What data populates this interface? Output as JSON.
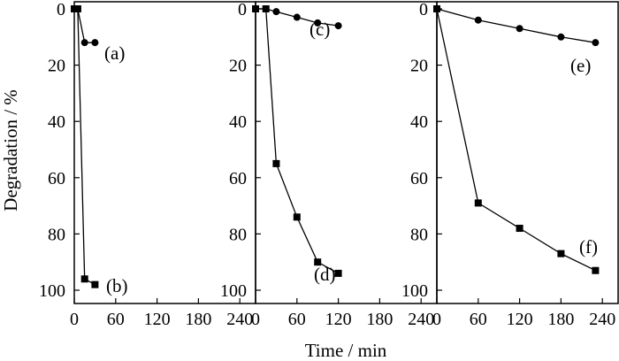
{
  "chart_data": [
    {
      "type": "line",
      "xlabel": "Time / min",
      "ylabel": "Degradation / %",
      "xlim": [
        0,
        240
      ],
      "ylim": [
        0,
        100
      ],
      "y_inverted": true,
      "x_ticks": [
        "0",
        "60",
        "120",
        "180",
        "240"
      ],
      "y_ticks": [
        "0",
        "20",
        "40",
        "60",
        "80",
        "100"
      ],
      "series": [
        {
          "name": "(a)",
          "marker": "circle",
          "x": [
            0,
            5,
            15,
            30
          ],
          "y": [
            0,
            0,
            12,
            12
          ]
        },
        {
          "name": "(b)",
          "marker": "square",
          "x": [
            0,
            5,
            15,
            30
          ],
          "y": [
            0,
            0,
            96,
            98
          ]
        }
      ]
    },
    {
      "type": "line",
      "xlabel": "Time / min",
      "ylabel": "Degradation / %",
      "xlim": [
        0,
        240
      ],
      "ylim": [
        0,
        100
      ],
      "y_inverted": true,
      "x_ticks": [
        "0",
        "60",
        "120",
        "180",
        "240"
      ],
      "y_ticks": [
        "0",
        "20",
        "40",
        "60",
        "80",
        "100"
      ],
      "series": [
        {
          "name": "(c)",
          "marker": "circle",
          "x": [
            0,
            15,
            30,
            60,
            90,
            120
          ],
          "y": [
            0,
            0,
            1,
            3,
            5,
            6
          ]
        },
        {
          "name": "(d)",
          "marker": "square",
          "x": [
            0,
            15,
            30,
            60,
            90,
            120
          ],
          "y": [
            0,
            0,
            55,
            74,
            90,
            94
          ]
        }
      ]
    },
    {
      "type": "line",
      "xlabel": "Time / min",
      "ylabel": "Degradation / %",
      "xlim": [
        0,
        240
      ],
      "ylim": [
        0,
        100
      ],
      "y_inverted": true,
      "x_ticks": [
        "0",
        "60",
        "120",
        "180",
        "240"
      ],
      "y_ticks": [
        "0",
        "20",
        "40",
        "60",
        "80",
        "100"
      ],
      "series": [
        {
          "name": "(e)",
          "marker": "circle",
          "x": [
            0,
            60,
            120,
            180,
            230
          ],
          "y": [
            0,
            4,
            7,
            10,
            12
          ]
        },
        {
          "name": "(f)",
          "marker": "square",
          "x": [
            0,
            60,
            120,
            180,
            230
          ],
          "y": [
            0,
            69,
            78,
            87,
            93
          ]
        }
      ]
    }
  ]
}
